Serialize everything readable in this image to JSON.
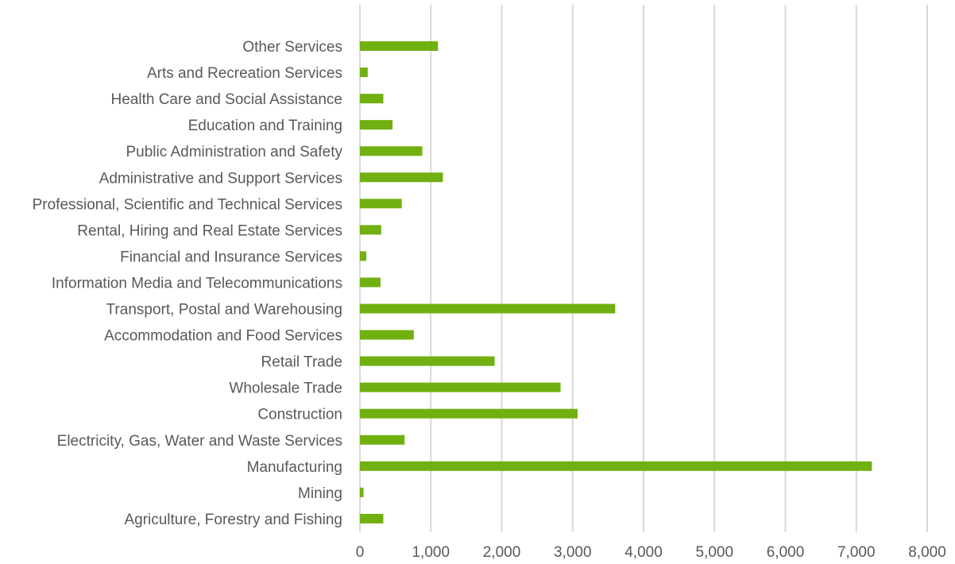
{
  "chart_data": {
    "type": "bar",
    "orientation": "horizontal",
    "title": "",
    "xlabel": "",
    "ylabel": "",
    "xlim": [
      0,
      8000
    ],
    "ticks": [
      0,
      1000,
      2000,
      3000,
      4000,
      5000,
      6000,
      7000,
      8000
    ],
    "tick_labels": [
      "0",
      "1,000",
      "2,000",
      "3,000",
      "4,000",
      "5,000",
      "6,000",
      "7,000",
      "8,000"
    ],
    "grid": "vertical",
    "legend": "none",
    "bar_color": "#70b010",
    "gridline_color": "#d9d9d9",
    "text_color": "#595959",
    "categories": [
      "Other Services",
      "Arts and Recreation Services",
      "Health Care and Social Assistance",
      "Education and Training",
      "Public Administration and Safety",
      "Administrative and Support Services",
      "Professional, Scientific and Technical Services",
      "Rental, Hiring and Real Estate Services",
      "Financial and Insurance Services",
      "Information Media and Telecommunications",
      "Transport, Postal and Warehousing",
      "Accommodation and Food Services",
      "Retail Trade",
      "Wholesale Trade",
      "Construction",
      "Electricity, Gas, Water and Waste Services",
      "Manufacturing",
      "Mining",
      "Agriculture, Forestry and Fishing"
    ],
    "values": [
      1100,
      110,
      330,
      460,
      880,
      1170,
      590,
      300,
      90,
      290,
      3600,
      760,
      1900,
      2830,
      3070,
      630,
      7220,
      50,
      330
    ]
  }
}
